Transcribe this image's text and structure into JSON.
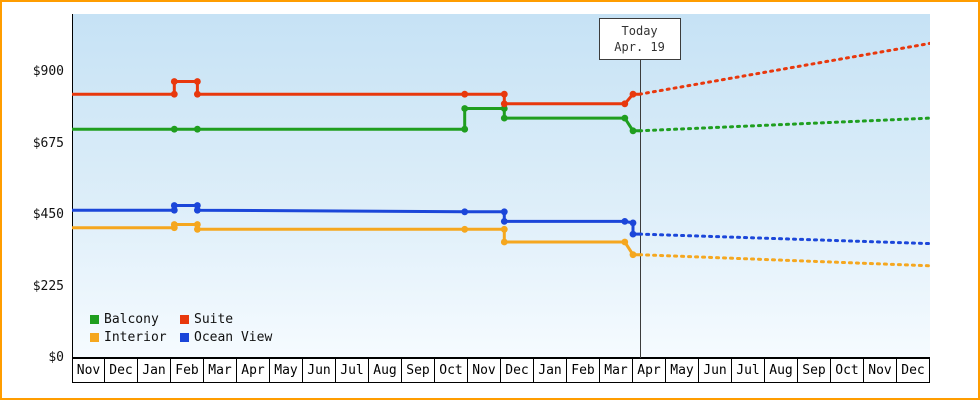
{
  "colors": {
    "frame_border": "#ff9d00",
    "plot_gradient_top": "#c6e2f5",
    "plot_gradient_bottom": "#f6fbff",
    "axis": "#000000",
    "today_line": "#3c3c3c"
  },
  "chart_data": {
    "type": "line",
    "title": "",
    "grid": false,
    "x_axis": {
      "months": [
        "Nov",
        "Dec",
        "Jan",
        "Feb",
        "Mar",
        "Apr",
        "May",
        "Jun",
        "Jul",
        "Aug",
        "Sep",
        "Oct",
        "Nov",
        "Dec",
        "Jan",
        "Feb",
        "Mar",
        "Apr",
        "May",
        "Jun",
        "Jul",
        "Aug",
        "Sep",
        "Oct",
        "Nov",
        "Dec"
      ]
    },
    "y_axis": {
      "ticks": [
        0,
        225,
        450,
        675,
        900
      ],
      "labels": [
        "$0",
        "$225",
        "$450",
        "$675",
        "$900"
      ],
      "ylim": [
        0,
        1080
      ],
      "unit": "$"
    },
    "today": {
      "month_index": 17.2,
      "line1": "Today",
      "line2": "Apr. 19"
    },
    "series": [
      {
        "name": "Balcony",
        "color": "#1f9e1f",
        "solid": [
          [
            0,
            720
          ],
          [
            3.1,
            720
          ],
          [
            3.8,
            720
          ],
          [
            11.9,
            720
          ],
          [
            11.9,
            785
          ],
          [
            13.1,
            785
          ],
          [
            13.1,
            755
          ],
          [
            16.75,
            755
          ],
          [
            17,
            715
          ],
          [
            17.2,
            715
          ]
        ],
        "projection": [
          [
            17.2,
            715
          ],
          [
            26,
            755
          ]
        ]
      },
      {
        "name": "Suite",
        "color": "#e8380d",
        "solid": [
          [
            0,
            830
          ],
          [
            3.1,
            830
          ],
          [
            3.1,
            870
          ],
          [
            3.8,
            870
          ],
          [
            3.8,
            830
          ],
          [
            11.9,
            830
          ],
          [
            13.1,
            830
          ],
          [
            13.1,
            800
          ],
          [
            16.75,
            800
          ],
          [
            17,
            830
          ],
          [
            17.2,
            830
          ]
        ],
        "projection": [
          [
            17.2,
            830
          ],
          [
            26,
            990
          ]
        ]
      },
      {
        "name": "Interior",
        "color": "#f5a71f",
        "solid": [
          [
            0,
            410
          ],
          [
            3.1,
            410
          ],
          [
            3.1,
            420
          ],
          [
            3.8,
            420
          ],
          [
            3.8,
            405
          ],
          [
            11.9,
            405
          ],
          [
            13.1,
            405
          ],
          [
            13.1,
            365
          ],
          [
            16.75,
            365
          ],
          [
            17,
            325
          ],
          [
            17.2,
            325
          ]
        ],
        "projection": [
          [
            17.2,
            325
          ],
          [
            26,
            290
          ]
        ]
      },
      {
        "name": "Ocean View",
        "color": "#1b46d9",
        "solid": [
          [
            0,
            465
          ],
          [
            3.1,
            465
          ],
          [
            3.1,
            480
          ],
          [
            3.8,
            480
          ],
          [
            3.8,
            465
          ],
          [
            11.9,
            460
          ],
          [
            13.1,
            460
          ],
          [
            13.1,
            430
          ],
          [
            16.75,
            430
          ],
          [
            17,
            425
          ],
          [
            17,
            390
          ],
          [
            17.2,
            390
          ]
        ],
        "projection": [
          [
            17.2,
            390
          ],
          [
            26,
            360
          ]
        ]
      }
    ],
    "legend": {
      "position": "bottom-left",
      "items": [
        "Balcony",
        "Suite",
        "Interior",
        "Ocean View"
      ]
    }
  }
}
